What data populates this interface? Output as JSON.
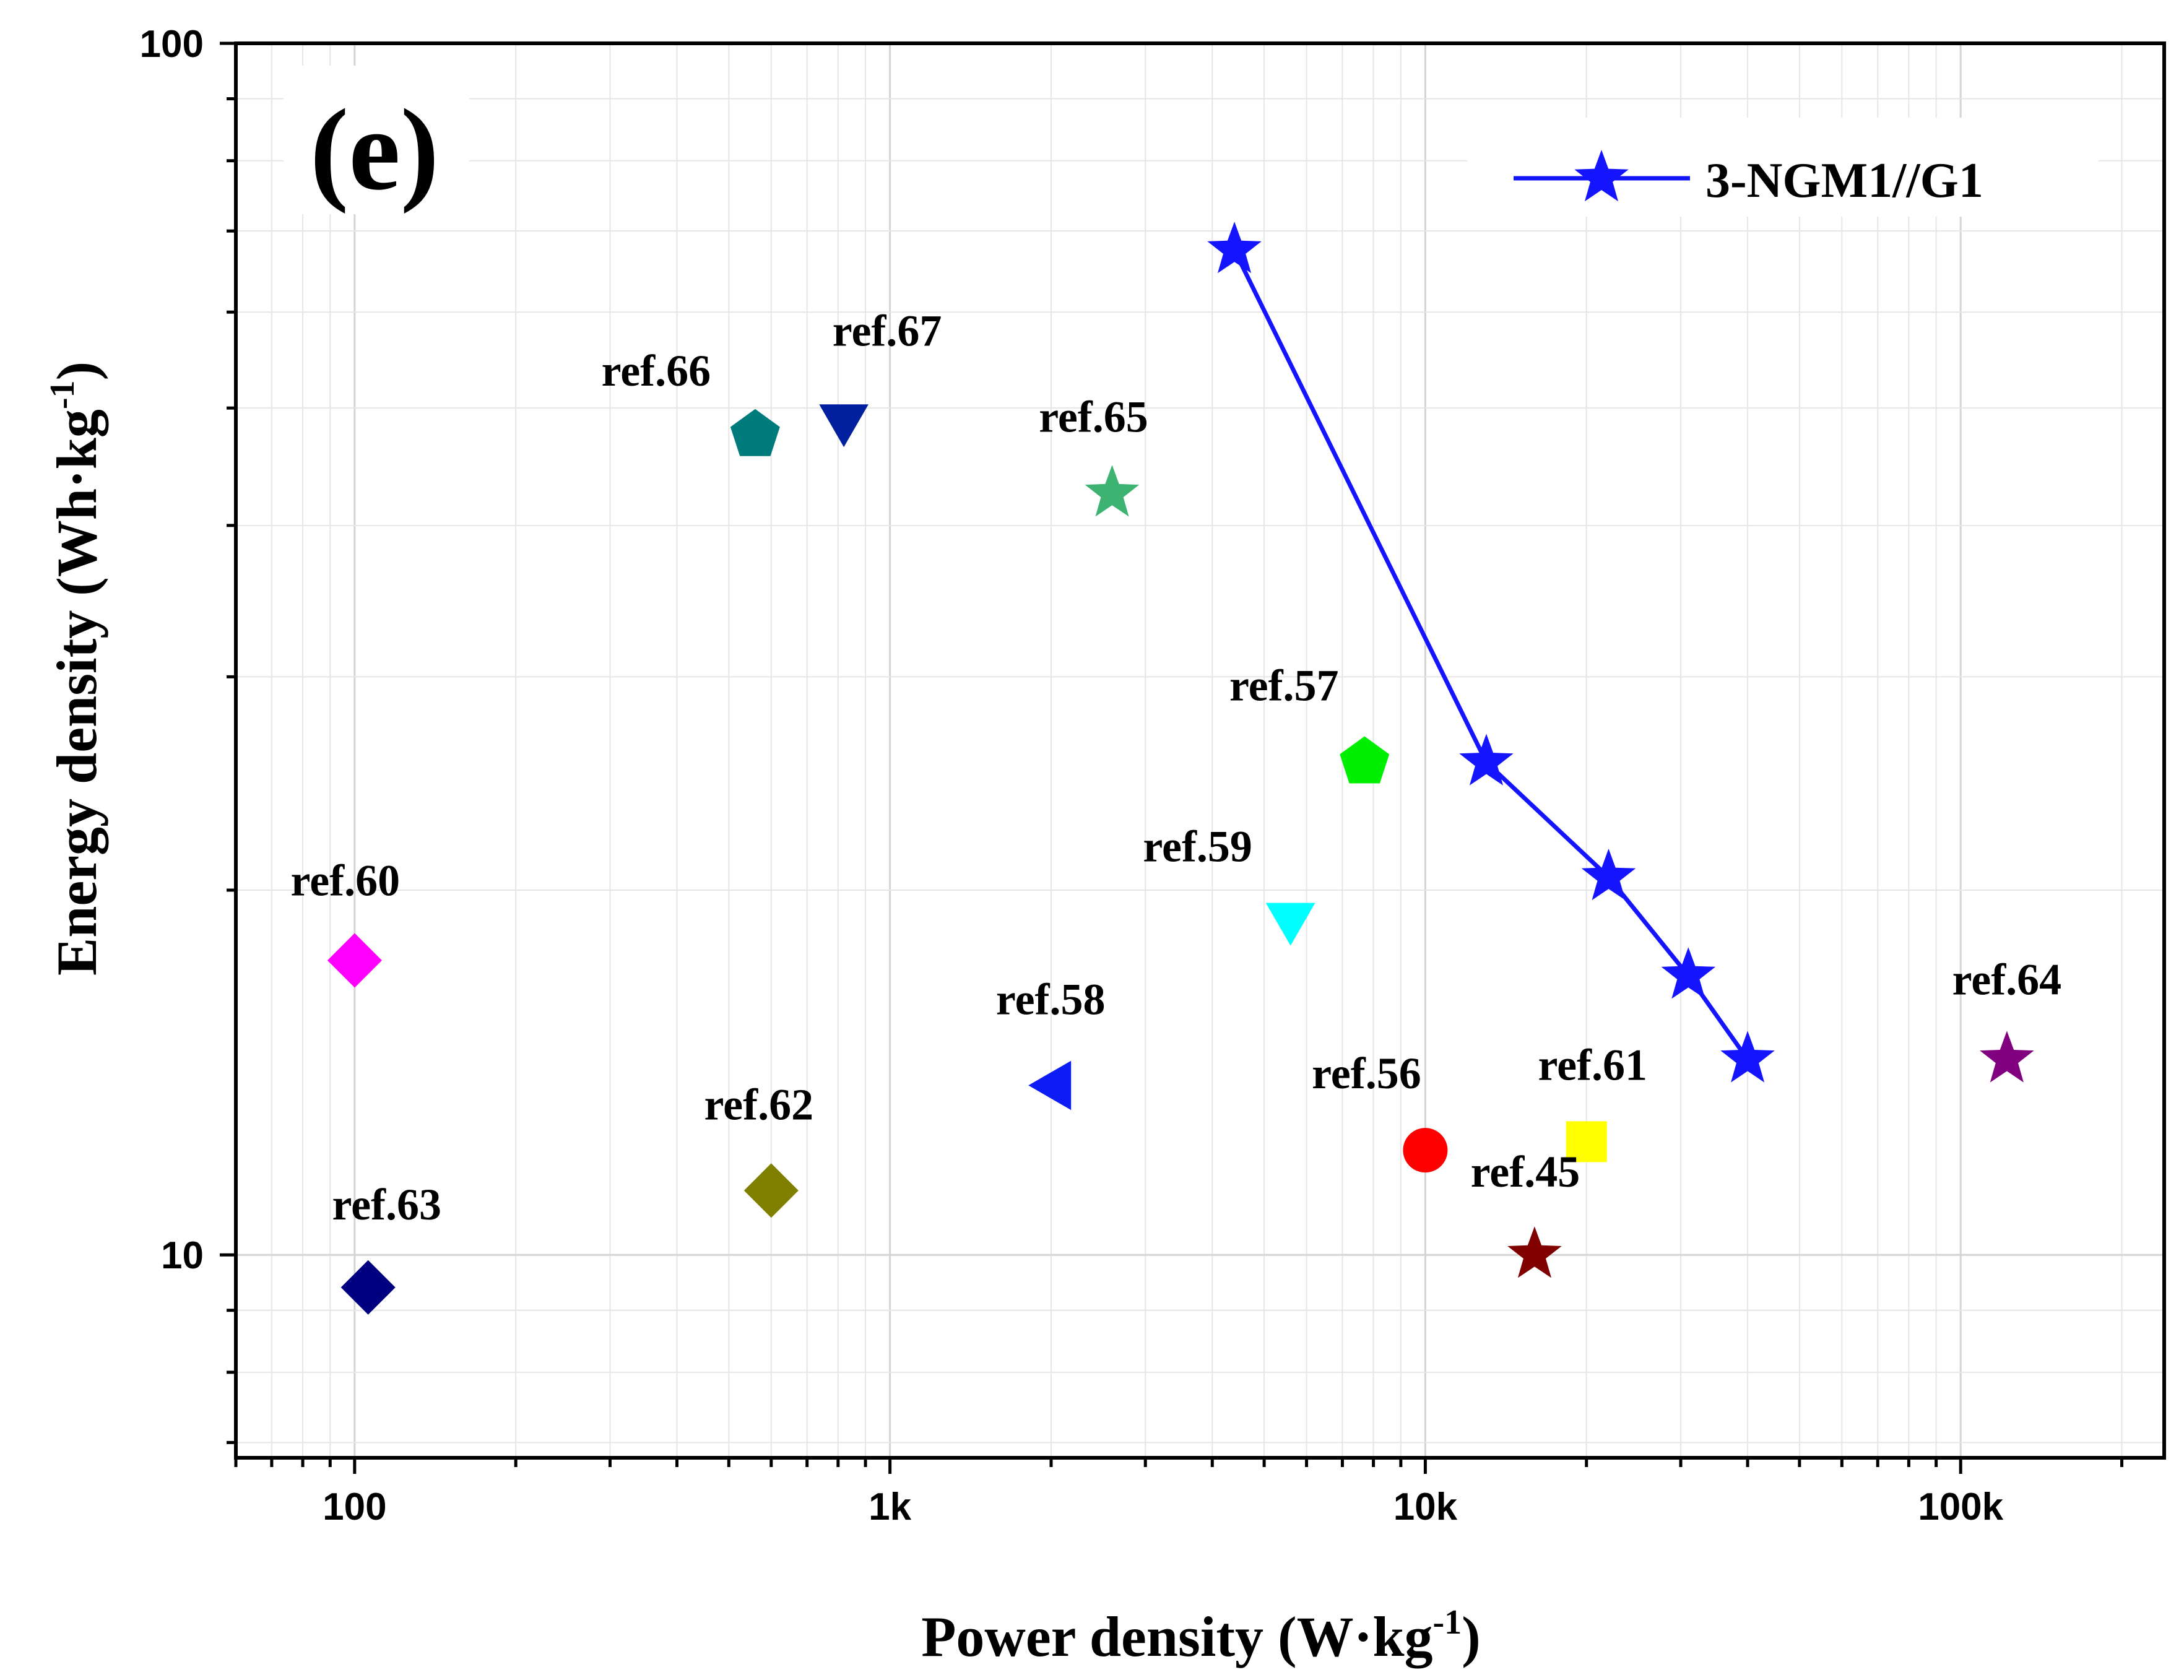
{
  "chart_data": {
    "type": "scatter",
    "panel_label": "(e)",
    "xlabel": {
      "main": "Power density (W·kg",
      "sup": "-1",
      "close": ")"
    },
    "ylabel": {
      "main": "Energy density (Wh·kg",
      "sup": "-1",
      "close": ")"
    },
    "x_scale": "log",
    "y_scale": "log",
    "xlim": [
      60,
      240000
    ],
    "ylim": [
      6.8,
      100
    ],
    "x_ticks": [
      {
        "value": 100,
        "label": "100"
      },
      {
        "value": 1000,
        "label": "1k"
      },
      {
        "value": 10000,
        "label": "10k"
      },
      {
        "value": 100000,
        "label": "100k"
      }
    ],
    "y_ticks": [
      {
        "value": 10,
        "label": "10"
      },
      {
        "value": 100,
        "label": "100"
      }
    ],
    "grid": true,
    "legend": {
      "position": "top-right",
      "entries": [
        "3-NGM1//G1"
      ]
    },
    "series": [
      {
        "name": "3-NGM1//G1",
        "color": "#1414ff",
        "marker": "star",
        "line": true,
        "points": [
          {
            "x": 4400,
            "y": 67.5
          },
          {
            "x": 13000,
            "y": 25.5
          },
          {
            "x": 22000,
            "y": 20.5
          },
          {
            "x": 31000,
            "y": 17.0
          },
          {
            "x": 40000,
            "y": 14.5
          }
        ]
      }
    ],
    "references": [
      {
        "label": "ref.66",
        "x": 560,
        "y": 47.5,
        "marker": "pentagon",
        "color": "#007b7b",
        "label_dx": -160,
        "label_dy": -80
      },
      {
        "label": "ref.67",
        "x": 820,
        "y": 49.0,
        "marker": "triangle-down",
        "color": "#00209f",
        "label_dx": 70,
        "label_dy": -118
      },
      {
        "label": "ref.65",
        "x": 2600,
        "y": 42.5,
        "marker": "star",
        "color": "#3cb371",
        "label_dx": -30,
        "label_dy": -100
      },
      {
        "label": "ref.57",
        "x": 7700,
        "y": 25.5,
        "marker": "pentagon",
        "color": "#00ee00",
        "label_dx": -130,
        "label_dy": -100
      },
      {
        "label": "ref.59",
        "x": 5600,
        "y": 19.0,
        "marker": "triangle-down",
        "color": "#00ffff",
        "label_dx": -150,
        "label_dy": -90
      },
      {
        "label": "ref.60",
        "x": 100,
        "y": 17.5,
        "marker": "diamond",
        "color": "#ff00ff",
        "label_dx": -15,
        "label_dy": -105
      },
      {
        "label": "ref.64",
        "x": 122000,
        "y": 14.5,
        "marker": "star",
        "color": "#800080",
        "label_dx": 0,
        "label_dy": -105
      },
      {
        "label": "ref.58",
        "x": 2050,
        "y": 13.8,
        "marker": "triangle-left",
        "color": "#0d1cf5",
        "label_dx": -10,
        "label_dy": -115
      },
      {
        "label": "ref.56",
        "x": 10000,
        "y": 12.2,
        "marker": "circle",
        "color": "#ff0000",
        "label_dx": -95,
        "label_dy": -100
      },
      {
        "label": "ref.61",
        "x": 20000,
        "y": 12.4,
        "marker": "square",
        "color": "#ffff00",
        "label_dx": 10,
        "label_dy": -100
      },
      {
        "label": "ref.62",
        "x": 600,
        "y": 11.3,
        "marker": "diamond",
        "color": "#808000",
        "label_dx": -20,
        "label_dy": -115
      },
      {
        "label": "ref.45",
        "x": 16000,
        "y": 10.0,
        "marker": "star",
        "color": "#800000",
        "label_dx": -15,
        "label_dy": -110
      },
      {
        "label": "ref.63",
        "x": 106,
        "y": 9.4,
        "marker": "diamond",
        "color": "#000080",
        "label_dx": 30,
        "label_dy": -110
      }
    ]
  }
}
